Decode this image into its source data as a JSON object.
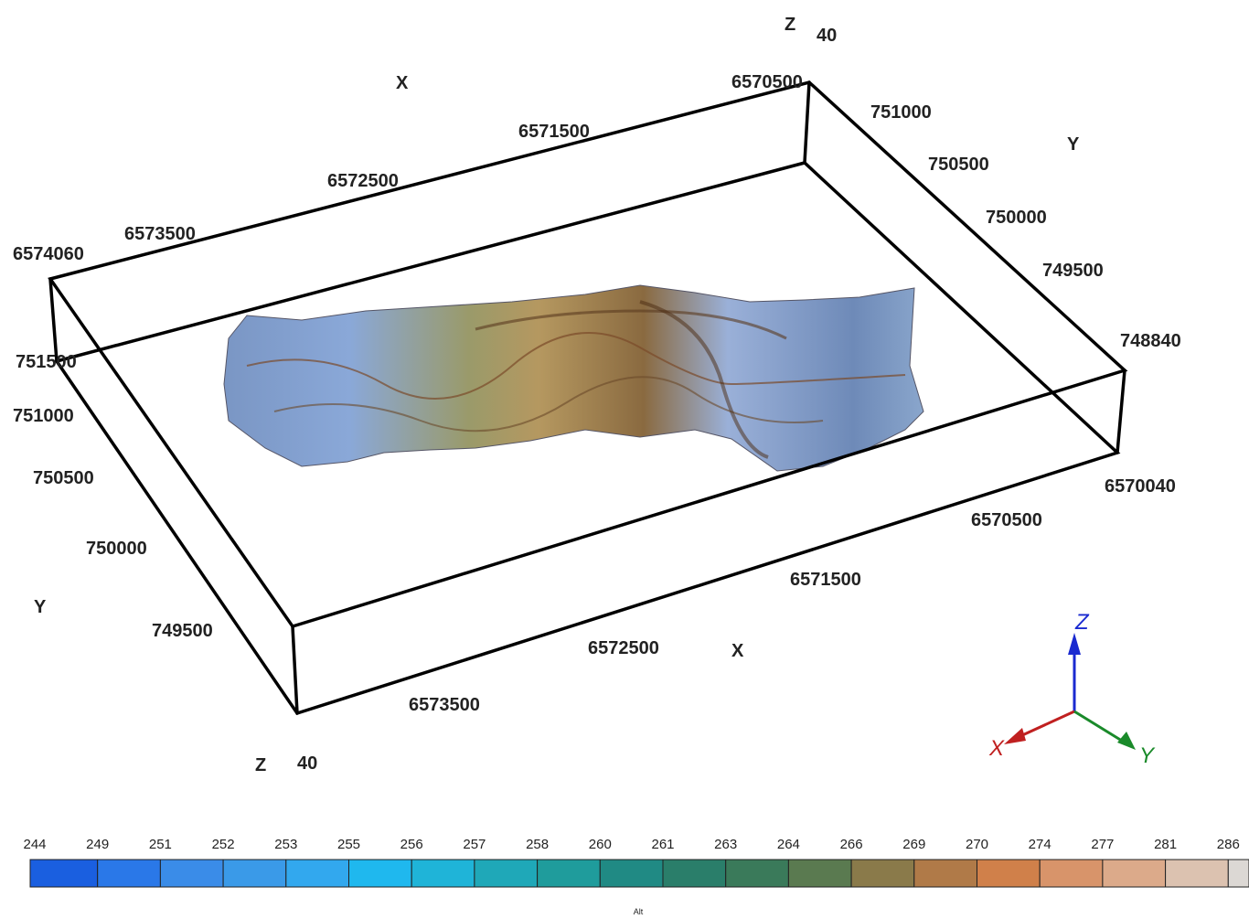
{
  "box": {
    "top_x_ticks": [
      "6570500",
      "6571500",
      "6572500",
      "6573500",
      "6574060"
    ],
    "right_y_ticks": [
      "751000",
      "750500",
      "750000",
      "749500",
      "748840"
    ],
    "left_y_ticks": [
      "751500",
      "751000",
      "750500",
      "750000",
      "749500"
    ],
    "bottom_x_ticks": [
      "6570040",
      "6570500",
      "6571500",
      "6572500",
      "6573500"
    ],
    "x_label": "X",
    "y_label": "Y",
    "z_label": "Z",
    "z_value": "40"
  },
  "triad": {
    "x": "X",
    "y": "Y",
    "z": "Z"
  },
  "colorbar": {
    "ticks": [
      244,
      249,
      251,
      252,
      253,
      255,
      256,
      257,
      258,
      260,
      261,
      263,
      264,
      266,
      269,
      270,
      274,
      277,
      281,
      286
    ],
    "colors": [
      "#1a5fe0",
      "#2a78e8",
      "#3a8ce8",
      "#3a9ae8",
      "#32a8ee",
      "#1fb8ee",
      "#1fb4d8",
      "#1fa8b8",
      "#1f9c9c",
      "#208a84",
      "#2a7e6a",
      "#3a7a5a",
      "#5a7a50",
      "#8a7a4a",
      "#b07a48",
      "#d0804a",
      "#d8946a",
      "#dcaa8a",
      "#dcc2b0",
      "#dcd8d4"
    ],
    "label": "Alt"
  }
}
